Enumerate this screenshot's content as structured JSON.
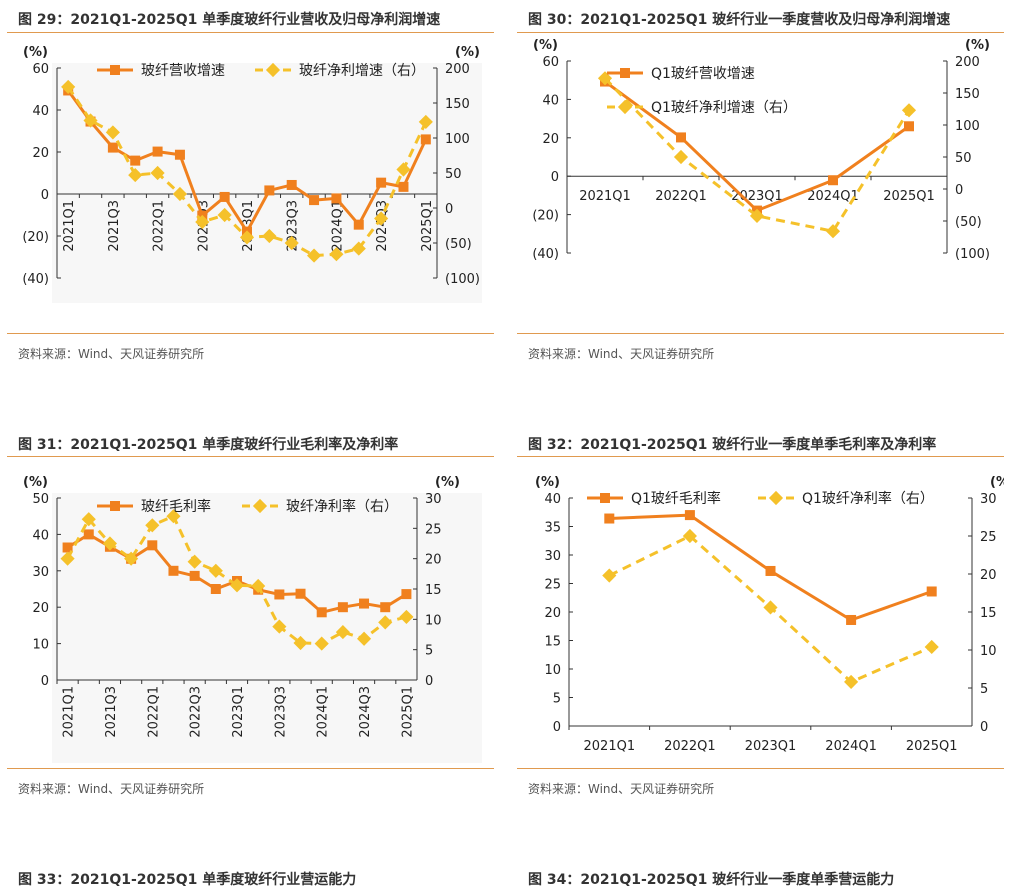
{
  "panels": [
    {
      "title": "图 29：2021Q1-2025Q1 单季度玻纤行业营收及归母净利润增速",
      "source": "资料来源：Wind、天风证券研究所"
    },
    {
      "title": "图 30：2021Q1-2025Q1 玻纤行业一季度营收及归母净利润增速",
      "source": "资料来源：Wind、天风证券研究所"
    },
    {
      "title": "图 31：2021Q1-2025Q1 单季度玻纤行业毛利率及净利率",
      "source": "资料来源：Wind、天风证券研究所"
    },
    {
      "title": "图 32：2021Q1-2025Q1 玻纤行业一季度单季毛利率及净利率",
      "source": "资料来源：Wind、天风证券研究所"
    },
    {
      "title": "图 33：2021Q1-2025Q1 单季度玻纤行业营运能力"
    },
    {
      "title": "图 34：2021Q1-2025Q1 玻纤行业一季度单季营运能力"
    }
  ],
  "colors": {
    "primary": "#f0801e",
    "secondary": "#f5c12a",
    "title_rule": "#e09a4f",
    "plot_bg": "#f7f7f7"
  },
  "chart_data": [
    {
      "id": "c29",
      "type": "line",
      "ylabel_left": "(%)",
      "ylabel_right": "(%)",
      "x": [
        "2021Q1",
        "2021Q2",
        "2021Q3",
        "2021Q4",
        "2022Q1",
        "2022Q2",
        "2022Q3",
        "2022Q4",
        "2023Q1",
        "2023Q2",
        "2023Q3",
        "2023Q4",
        "2024Q1",
        "2024Q2",
        "2024Q3",
        "2024Q4",
        "2025Q1"
      ],
      "x_tick_labels": [
        "2021Q1",
        "",
        "2021Q3",
        "",
        "2022Q1",
        "",
        "2022Q3",
        "",
        "2023Q1",
        "",
        "2023Q3",
        "",
        "2024Q1",
        "",
        "2024Q3",
        "",
        "2025Q1"
      ],
      "ylim_left": [
        -40,
        60
      ],
      "yticks_left": [
        -40,
        -20,
        0,
        20,
        40,
        60
      ],
      "ylim_right": [
        -100,
        200
      ],
      "yticks_right": [
        -100,
        -50,
        0,
        50,
        100,
        150,
        200
      ],
      "tick_format": "paren",
      "grid": false,
      "plot_bg": true,
      "x_axis_at": 0,
      "x_labels_rotated": true,
      "series": [
        {
          "name": "玻纤营收增速",
          "axis": "left",
          "style": "solid",
          "marker": "square",
          "values": [
            49.3,
            34.5,
            22.1,
            15.9,
            20.2,
            18.7,
            -10.3,
            -1.4,
            -17.9,
            1.7,
            4.3,
            -2.9,
            -2.1,
            -14.6,
            5.4,
            3.4,
            26.0
          ]
        },
        {
          "name": "玻纤净利增速（右）",
          "axis": "right",
          "style": "dashed",
          "marker": "diamond",
          "values": [
            173,
            125,
            108,
            47,
            50,
            20,
            -20,
            -10,
            -42,
            -40,
            -50,
            -68,
            -66,
            -58,
            -15,
            55,
            123
          ]
        }
      ],
      "legend": "top"
    },
    {
      "id": "c30",
      "type": "line",
      "ylabel_left": "(%)",
      "ylabel_right": "(%)",
      "x": [
        "2021Q1",
        "2022Q1",
        "2023Q1",
        "2024Q1",
        "2025Q1"
      ],
      "x_tick_labels": [
        "2021Q1",
        "2022Q1",
        "2023Q1",
        "2024Q1",
        "2025Q1"
      ],
      "ylim_left": [
        -40,
        60
      ],
      "yticks_left": [
        -40,
        -20,
        0,
        20,
        40,
        60
      ],
      "ylim_right": [
        -100,
        200
      ],
      "yticks_right": [
        -100,
        -50,
        0,
        50,
        100,
        150,
        200
      ],
      "tick_format": "paren",
      "grid": false,
      "plot_bg": false,
      "x_axis_at": 0,
      "x_labels_rotated": false,
      "series": [
        {
          "name": "Q1玻纤营收增速",
          "axis": "left",
          "style": "solid",
          "marker": "square",
          "values": [
            49.3,
            20.2,
            -17.9,
            -2.1,
            26.0
          ]
        },
        {
          "name": "Q1玻纤净利增速（右）",
          "axis": "right",
          "style": "dashed",
          "marker": "diamond",
          "values": [
            173,
            50,
            -42,
            -66,
            123
          ]
        }
      ],
      "legend": "top-left-stacked"
    },
    {
      "id": "c31",
      "type": "line",
      "ylabel_left": "(%)",
      "ylabel_right": "(%)",
      "x": [
        "2021Q1",
        "2021Q2",
        "2021Q3",
        "2021Q4",
        "2022Q1",
        "2022Q2",
        "2022Q3",
        "2022Q4",
        "2023Q1",
        "2023Q2",
        "2023Q3",
        "2023Q4",
        "2024Q1",
        "2024Q2",
        "2024Q3",
        "2024Q4",
        "2025Q1"
      ],
      "x_tick_labels": [
        "2021Q1",
        "",
        "2021Q3",
        "",
        "2022Q1",
        "",
        "2022Q3",
        "",
        "2023Q1",
        "",
        "2023Q3",
        "",
        "2024Q1",
        "",
        "2024Q3",
        "",
        "2025Q1"
      ],
      "ylim_left": [
        0,
        50
      ],
      "yticks_left": [
        0,
        10,
        20,
        30,
        40,
        50
      ],
      "ylim_right": [
        0,
        30
      ],
      "yticks_right": [
        0,
        5,
        10,
        15,
        20,
        25,
        30
      ],
      "tick_format": "plain",
      "grid": false,
      "plot_bg": true,
      "x_axis_at": 0,
      "x_labels_rotated": true,
      "series": [
        {
          "name": "玻纤毛利率",
          "axis": "left",
          "style": "solid",
          "marker": "square",
          "values": [
            36.4,
            40.0,
            36.6,
            33.3,
            37.0,
            30.0,
            28.6,
            25.0,
            27.2,
            24.8,
            23.5,
            23.7,
            18.6,
            20.0,
            21.0,
            20.0,
            23.6
          ]
        },
        {
          "name": "玻纤净利率（右）",
          "axis": "right",
          "style": "dashed",
          "marker": "diamond",
          "values": [
            20.0,
            26.5,
            22.5,
            20.0,
            25.5,
            27.0,
            19.5,
            18.0,
            15.6,
            15.5,
            8.8,
            6.1,
            6.0,
            7.9,
            6.8,
            9.5,
            10.4
          ]
        }
      ],
      "legend": "top"
    },
    {
      "id": "c32",
      "type": "line",
      "ylabel_left": "(%)",
      "ylabel_right": "(%)",
      "x": [
        "2021Q1",
        "2022Q1",
        "2023Q1",
        "2024Q1",
        "2025Q1"
      ],
      "x_tick_labels": [
        "2021Q1",
        "2022Q1",
        "2023Q1",
        "2024Q1",
        "2025Q1"
      ],
      "ylim_left": [
        0,
        40
      ],
      "yticks_left": [
        0,
        5,
        10,
        15,
        20,
        25,
        30,
        35,
        40
      ],
      "ylim_right": [
        0,
        30
      ],
      "yticks_right": [
        0,
        5,
        10,
        15,
        20,
        25,
        30
      ],
      "tick_format": "plain",
      "grid": false,
      "plot_bg": false,
      "x_axis_at": 0,
      "x_labels_rotated": false,
      "series": [
        {
          "name": "Q1玻纤毛利率",
          "axis": "left",
          "style": "solid",
          "marker": "square",
          "values": [
            36.4,
            37.0,
            27.2,
            18.6,
            23.6
          ]
        },
        {
          "name": "Q1玻纤净利率（右）",
          "axis": "right",
          "style": "dashed",
          "marker": "diamond",
          "values": [
            19.8,
            25.0,
            15.6,
            5.8,
            10.4
          ]
        }
      ],
      "legend": "top"
    }
  ]
}
